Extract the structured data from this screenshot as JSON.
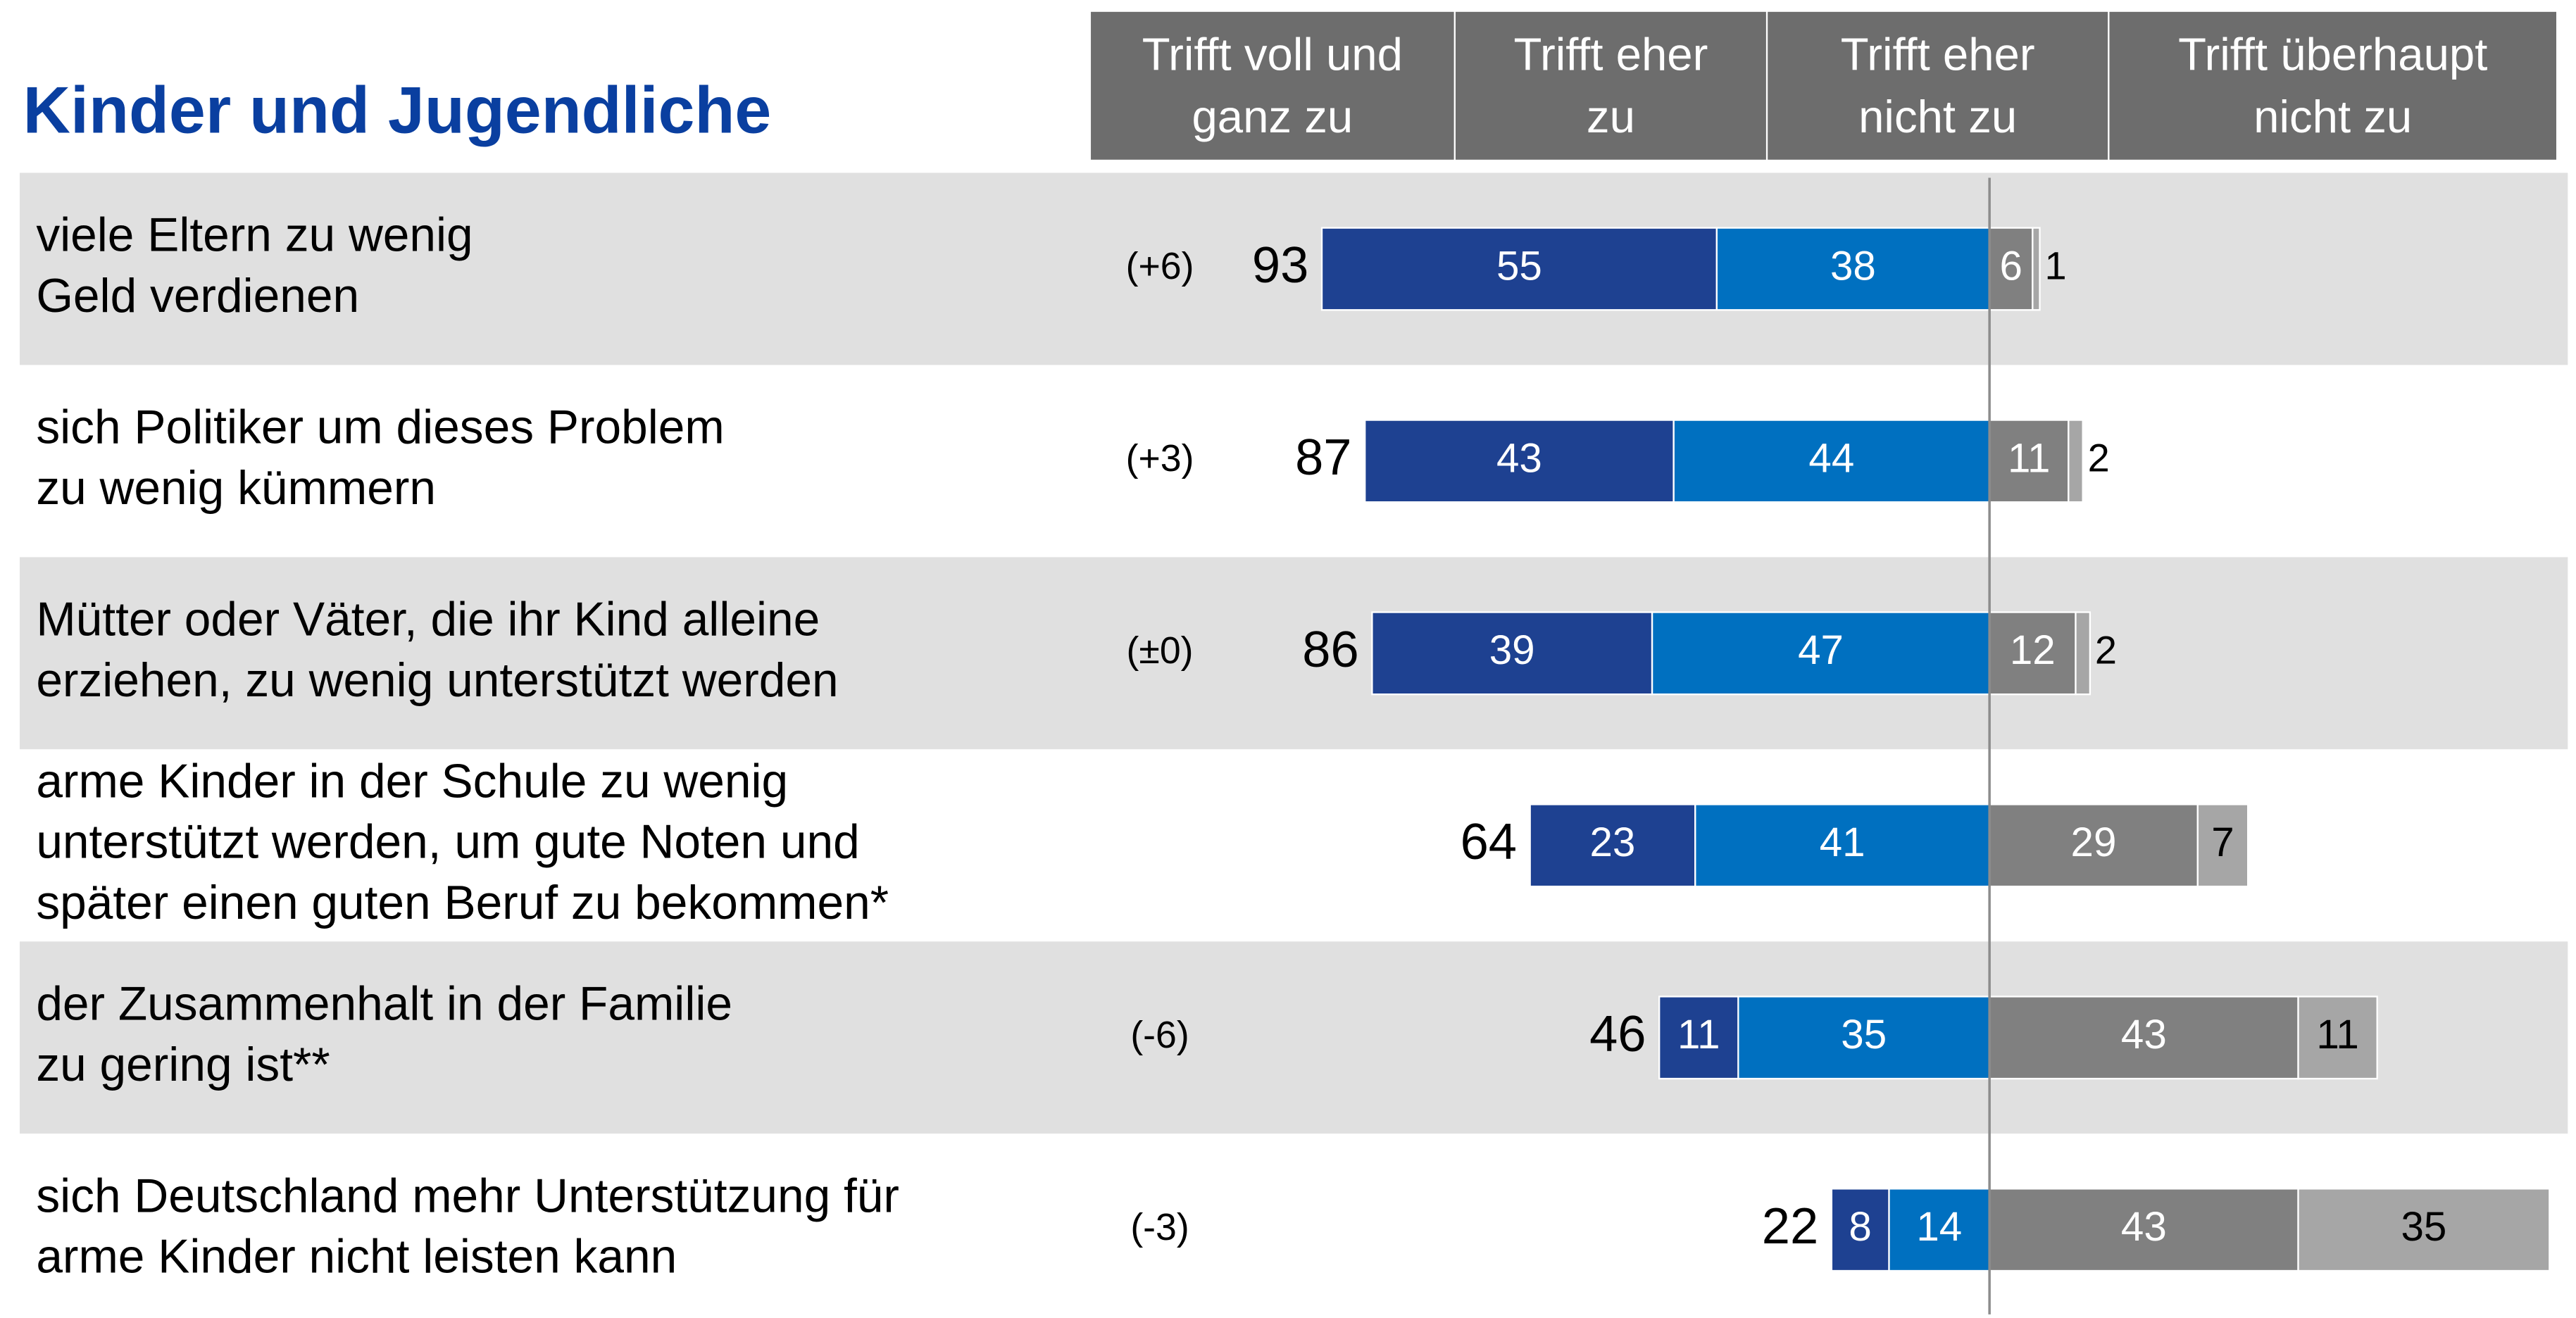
{
  "chart_data": {
    "type": "diverging-bar",
    "title": "Kinder und Jugendliche",
    "categories": [
      [
        "viele Eltern zu wenig",
        "Geld verdienen"
      ],
      [
        "sich Politiker um dieses Problem",
        "zu wenig kümmern"
      ],
      [
        "Mütter oder Väter, die ihr Kind alleine",
        "erziehen, zu wenig unterstützt werden"
      ],
      [
        "arme Kinder in der Schule zu wenig",
        "unterstützt werden, um gute Noten und",
        "später einen guten Beruf zu bekommen*"
      ],
      [
        "der Zusammenhalt in der Familie",
        "zu gering ist**"
      ],
      [
        "sich Deutschland mehr Unterstützung für",
        "arme Kinder nicht leisten kann"
      ]
    ],
    "changes": [
      "(+6)",
      "(+3)",
      "(±0)",
      null,
      "(-6)",
      "(-3)"
    ],
    "totals": [
      93,
      87,
      86,
      64,
      46,
      22
    ],
    "series": [
      {
        "name": [
          "Trifft voll und",
          "ganz zu"
        ],
        "color": "#1e4191",
        "side": "left",
        "values": [
          55,
          43,
          39,
          23,
          11,
          8
        ]
      },
      {
        "name": [
          "Trifft eher",
          "zu"
        ],
        "color": "#0070c0",
        "side": "left",
        "values": [
          38,
          44,
          47,
          41,
          35,
          14
        ]
      },
      {
        "name": [
          "Trifft eher",
          "nicht zu"
        ],
        "color": "#808080",
        "side": "right",
        "values": [
          6,
          11,
          12,
          29,
          43,
          43
        ]
      },
      {
        "name": [
          "Trifft überhaupt",
          "nicht zu"
        ],
        "color": "#a6a6a6",
        "side": "right",
        "values": [
          1,
          2,
          2,
          7,
          11,
          35
        ]
      }
    ]
  }
}
